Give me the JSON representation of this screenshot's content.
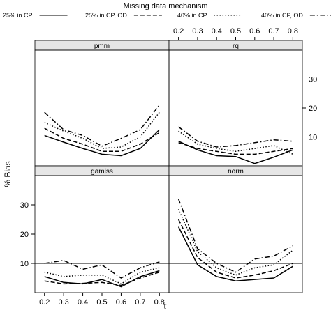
{
  "legend": {
    "title": "Missing data mechanism",
    "entries": [
      {
        "label": "25% in CP",
        "dash": "solid"
      },
      {
        "label": "25% in CP, OD",
        "dash": "dashed"
      },
      {
        "label": "40% in CP",
        "dash": "dotted"
      },
      {
        "label": "40% in CP, OD",
        "dash": "dashdot"
      }
    ]
  },
  "chart_data": {
    "type": "line",
    "xlabel": "τ",
    "ylabel": "% Bias",
    "x": [
      0.2,
      0.3,
      0.4,
      0.5,
      0.6,
      0.7,
      0.8
    ],
    "x_ticks": [
      "0.2",
      "0.3",
      "0.4",
      "0.5",
      "0.6",
      "0.7",
      "0.8"
    ],
    "y_ticks": [
      "10",
      "20",
      "30"
    ],
    "ylim": [
      0,
      40
    ],
    "reference_line": 10,
    "grid": false,
    "legend_position": "top",
    "panels": [
      {
        "name": "pmm",
        "series": [
          {
            "name": "25% in CP",
            "values": [
              10.5,
              8.2,
              6.0,
              4.0,
              3.5,
              6.0,
              12.5
            ]
          },
          {
            "name": "25% in CP, OD",
            "values": [
              13.0,
              9.5,
              7.5,
              5.0,
              5.0,
              7.5,
              11.5
            ]
          },
          {
            "name": "40% in CP",
            "values": [
              15.0,
              12.0,
              9.5,
              6.0,
              6.5,
              10.0,
              18.5
            ]
          },
          {
            "name": "40% in CP, OD",
            "values": [
              18.5,
              12.5,
              10.5,
              6.8,
              9.5,
              12.5,
              21.0
            ]
          }
        ]
      },
      {
        "name": "rq",
        "series": [
          {
            "name": "25% in CP",
            "values": [
              8.5,
              5.5,
              3.5,
              3.2,
              0.8,
              3.0,
              5.5
            ]
          },
          {
            "name": "25% in CP, OD",
            "values": [
              8.0,
              6.0,
              5.0,
              4.0,
              4.0,
              5.0,
              6.0
            ]
          },
          {
            "name": "40% in CP",
            "values": [
              12.0,
              7.5,
              6.0,
              5.0,
              6.0,
              7.0,
              4.0
            ]
          },
          {
            "name": "40% in CP, OD",
            "values": [
              13.5,
              8.5,
              6.5,
              7.0,
              8.0,
              9.0,
              8.5
            ]
          }
        ]
      },
      {
        "name": "gamlss",
        "series": [
          {
            "name": "25% in CP",
            "values": [
              5.5,
              3.5,
              3.0,
              4.5,
              2.0,
              5.5,
              7.5
            ]
          },
          {
            "name": "25% in CP, OD",
            "values": [
              4.0,
              3.0,
              3.2,
              3.5,
              2.5,
              5.0,
              7.0
            ]
          },
          {
            "name": "40% in CP",
            "values": [
              7.0,
              5.5,
              6.0,
              6.0,
              3.0,
              7.0,
              8.5
            ]
          },
          {
            "name": "40% in CP, OD",
            "values": [
              10.0,
              11.0,
              8.0,
              9.5,
              5.0,
              8.5,
              10.5
            ]
          }
        ]
      },
      {
        "name": "norm",
        "series": [
          {
            "name": "25% in CP",
            "values": [
              22.5,
              9.5,
              5.5,
              4.0,
              4.5,
              5.0,
              9.0
            ]
          },
          {
            "name": "25% in CP, OD",
            "values": [
              25.0,
              12.0,
              7.0,
              5.0,
              6.0,
              7.5,
              10.0
            ]
          },
          {
            "name": "40% in CP",
            "values": [
              28.5,
              14.0,
              8.5,
              6.0,
              8.5,
              9.5,
              14.5
            ]
          },
          {
            "name": "40% in CP, OD",
            "values": [
              32.0,
              15.0,
              10.0,
              7.0,
              11.5,
              12.5,
              16.0
            ]
          }
        ]
      }
    ]
  }
}
